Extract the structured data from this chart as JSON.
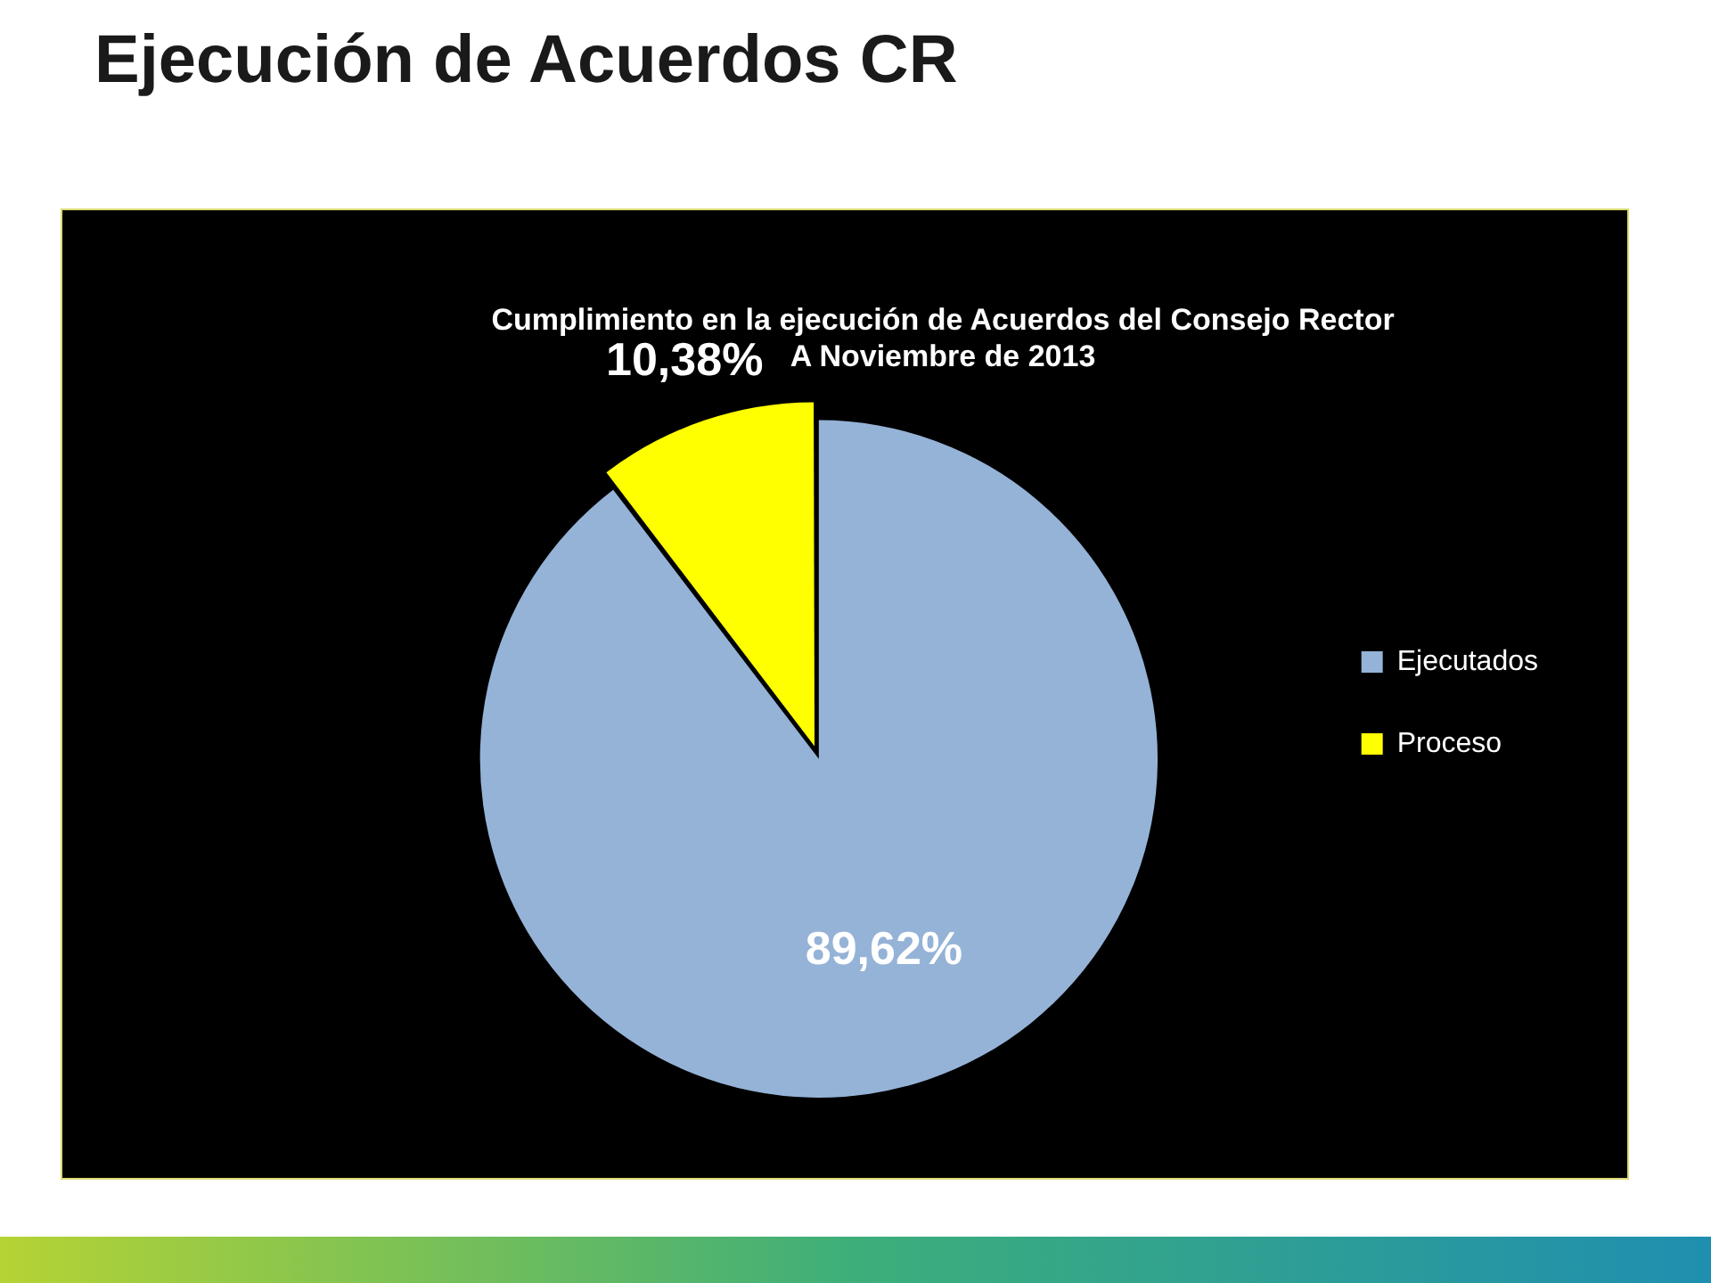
{
  "chart_data": {
    "type": "pie",
    "title": "Ejecución de Acuerdos CR",
    "subtitle": "Cumplimiento en la ejecución de Acuerdos del Consejo Rector",
    "annotations": [
      "A Noviembre de 2013"
    ],
    "categories": [
      "Ejecutados",
      "Proceso"
    ],
    "values": [
      89.62,
      10.38
    ],
    "colors": [
      "#95b3d7",
      "#ffff00"
    ],
    "value_labels": [
      "89,62%",
      "10,38%"
    ],
    "legend": "right"
  }
}
